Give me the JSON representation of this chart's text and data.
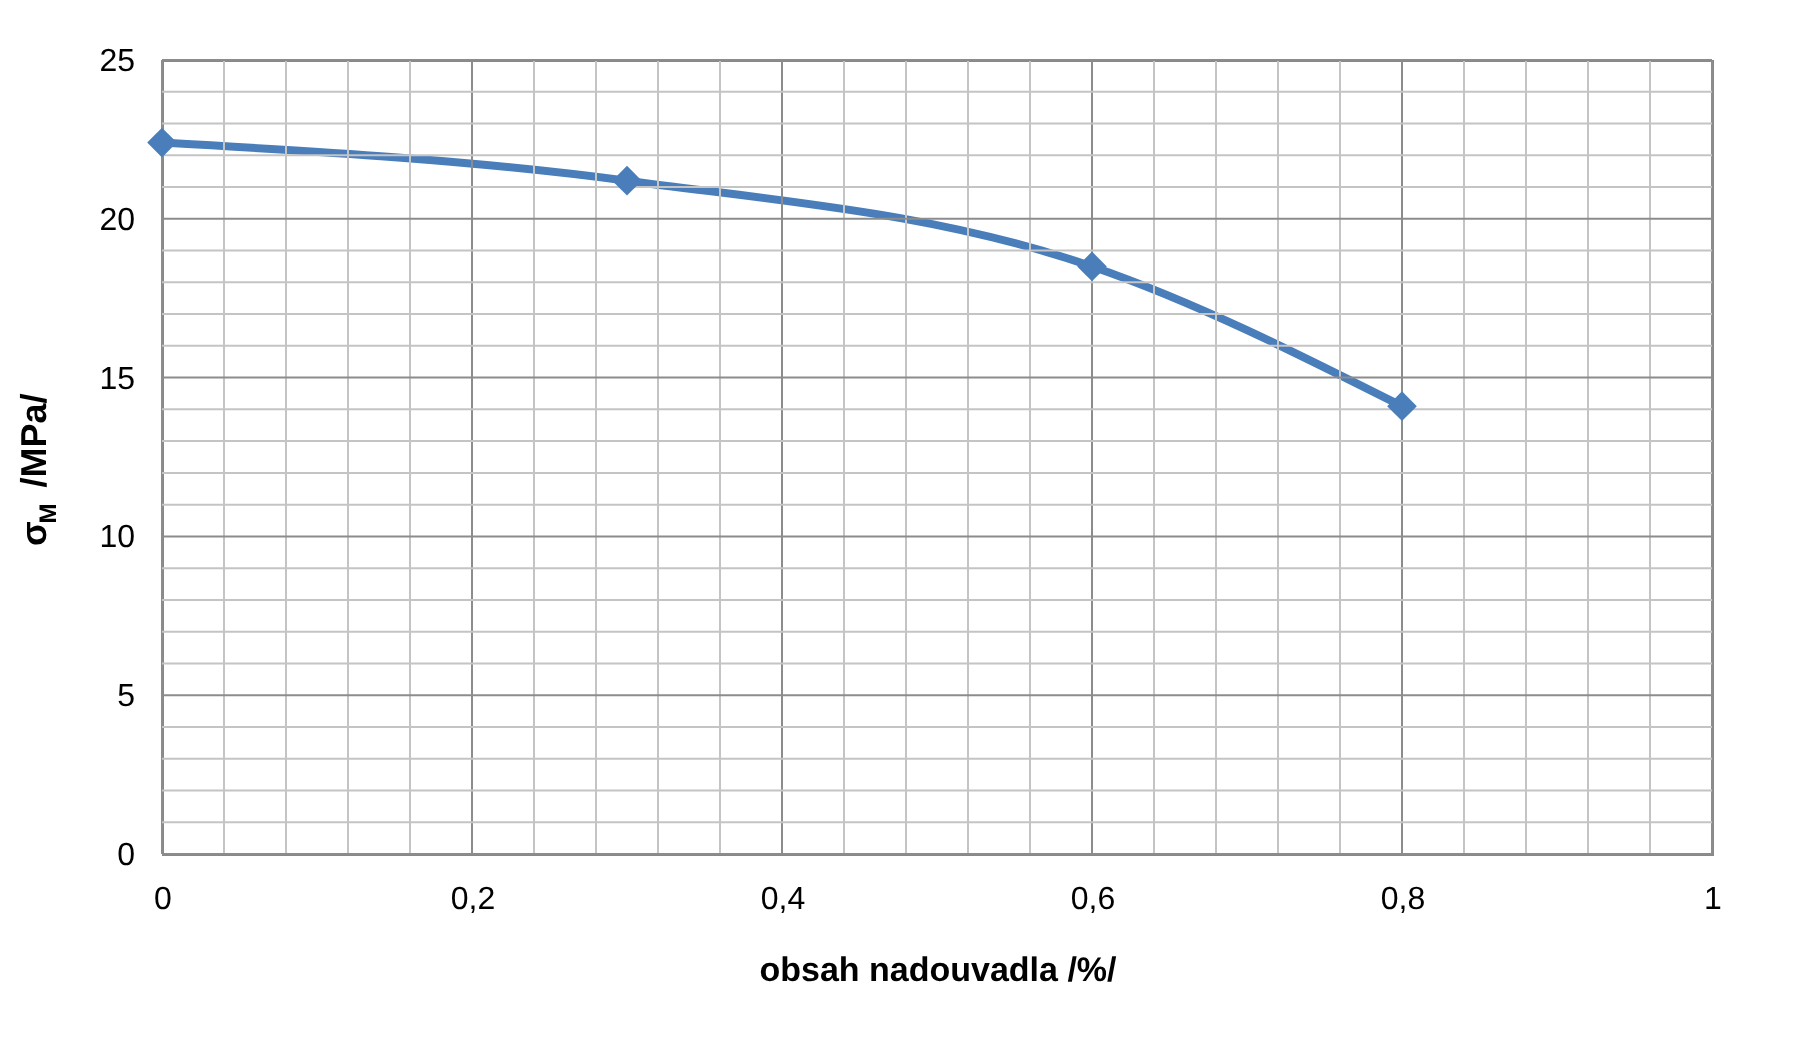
{
  "chart_data": {
    "type": "line",
    "xlabel": "obsah nadouvadla /%/",
    "ylabel": "σ$_{M}$ /MPa/",
    "x": [
      0,
      0.3,
      0.6,
      0.8
    ],
    "series": [
      {
        "color": "#4a7ebb",
        "values": [
          22.4,
          21.2,
          18.5,
          14.1
        ]
      }
    ],
    "xlim": [
      0,
      1
    ],
    "ylim": [
      0,
      25
    ],
    "xticks": [
      {
        "value": 0,
        "label": "0"
      },
      {
        "value": 0.04,
        "label": null
      },
      {
        "value": 0.08,
        "label": null
      },
      {
        "value": 0.12,
        "label": null
      },
      {
        "value": 0.16,
        "label": null
      },
      {
        "value": 0.2,
        "label": "0,2"
      },
      {
        "value": 0.24,
        "label": null
      },
      {
        "value": 0.28,
        "label": null
      },
      {
        "value": 0.32,
        "label": null
      },
      {
        "value": 0.36,
        "label": null
      },
      {
        "value": 0.4,
        "label": "0,4"
      },
      {
        "value": 0.44,
        "label": null
      },
      {
        "value": 0.48,
        "label": null
      },
      {
        "value": 0.52,
        "label": null
      },
      {
        "value": 0.56,
        "label": null
      },
      {
        "value": 0.6,
        "label": "0,6"
      },
      {
        "value": 0.64,
        "label": null
      },
      {
        "value": 0.68,
        "label": null
      },
      {
        "value": 0.72,
        "label": null
      },
      {
        "value": 0.76,
        "label": null
      },
      {
        "value": 0.8,
        "label": "0,8"
      },
      {
        "value": 0.84,
        "label": null
      },
      {
        "value": 0.88,
        "label": null
      },
      {
        "value": 0.92,
        "label": null
      },
      {
        "value": 0.96,
        "label": null
      },
      {
        "value": 1,
        "label": "1"
      }
    ],
    "yticks": [
      0,
      {
        "value": 1,
        "label": null
      },
      {
        "value": 2,
        "label": null
      },
      {
        "value": 3,
        "label": null
      },
      {
        "value": 4,
        "label": null
      },
      5,
      {
        "value": 6,
        "label": null
      },
      {
        "value": 7,
        "label": null
      },
      {
        "value": 8,
        "label": null
      },
      {
        "value": 9,
        "label": null
      },
      10,
      {
        "value": 11,
        "label": null
      },
      {
        "value": 12,
        "label": null
      },
      {
        "value": 13,
        "label": null
      },
      {
        "value": 14,
        "label": null
      },
      15,
      {
        "value": 16,
        "label": null
      },
      {
        "value": 17,
        "label": null
      },
      {
        "value": 18,
        "label": null
      },
      {
        "value": 19,
        "label": null
      },
      20,
      {
        "value": 21,
        "label": null
      },
      {
        "value": 22,
        "label": null
      },
      {
        "value": 23,
        "label": null
      },
      {
        "value": 24,
        "label": null
      },
      25
    ],
    "grid": true,
    "marker": "diamond",
    "line_style": "solid",
    "legend": false
  }
}
